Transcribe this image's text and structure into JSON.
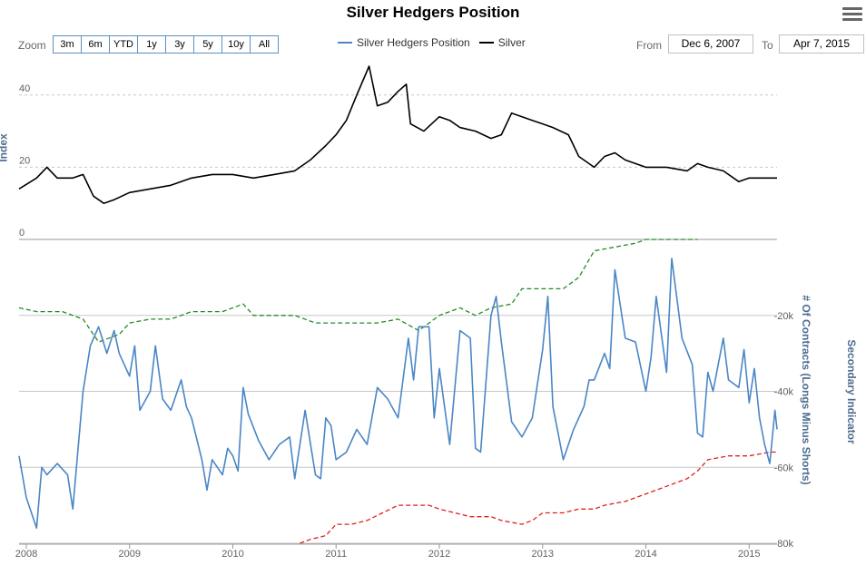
{
  "title": "Silver Hedgers Position",
  "menu_icon": "hamburger-menu-icon",
  "toolbar": {
    "zoom_label": "Zoom",
    "zoom_buttons": [
      "3m",
      "6m",
      "YTD",
      "1y",
      "3y",
      "5y",
      "10y",
      "All"
    ],
    "from_label": "From",
    "from_value": "Dec 6, 2007",
    "to_label": "To",
    "to_value": "Apr 7, 2015"
  },
  "chart_data": {
    "type": "line",
    "title": "Silver Hedgers Position",
    "x_range": [
      2007.93,
      2015.27
    ],
    "x_ticks": [
      "2008",
      "2009",
      "2010",
      "2011",
      "2012",
      "2013",
      "2014",
      "2015"
    ],
    "legend": [
      "Silver Hedgers Position",
      "Silver"
    ],
    "legend_placement": "top-center",
    "grid": true,
    "top_panel": {
      "ylabel": "Index",
      "ylim": [
        0,
        50
      ],
      "y_ticks": [
        "0",
        "20",
        "40"
      ],
      "series": [
        {
          "name": "Silver",
          "color": "#000000",
          "x": [
            2007.93,
            2008.1,
            2008.2,
            2008.3,
            2008.45,
            2008.55,
            2008.65,
            2008.75,
            2008.85,
            2009.0,
            2009.2,
            2009.4,
            2009.6,
            2009.8,
            2010.0,
            2010.2,
            2010.4,
            2010.6,
            2010.75,
            2010.9,
            2011.0,
            2011.1,
            2011.2,
            2011.32,
            2011.4,
            2011.5,
            2011.6,
            2011.68,
            2011.72,
            2011.85,
            2012.0,
            2012.1,
            2012.2,
            2012.35,
            2012.5,
            2012.6,
            2012.7,
            2012.8,
            2012.9,
            2013.0,
            2013.1,
            2013.25,
            2013.35,
            2013.5,
            2013.6,
            2013.7,
            2013.8,
            2013.9,
            2014.0,
            2014.2,
            2014.4,
            2014.5,
            2014.6,
            2014.75,
            2014.9,
            2015.0,
            2015.1,
            2015.2,
            2015.27
          ],
          "values": [
            14,
            17,
            20,
            17,
            17,
            18,
            12,
            10,
            11,
            13,
            14,
            15,
            17,
            18,
            18,
            17,
            18,
            19,
            22,
            26,
            29,
            33,
            40,
            48,
            37,
            38,
            41,
            43,
            32,
            30,
            34,
            33,
            31,
            30,
            28,
            29,
            35,
            34,
            33,
            32,
            31,
            29,
            23,
            20,
            23,
            24,
            22,
            21,
            20,
            20,
            19,
            21,
            20,
            19,
            16,
            17,
            17,
            17,
            17
          ]
        }
      ]
    },
    "bottom_panel": {
      "ylabel": "# Of Contracts (Longs Minus Shorts)",
      "secondary_ylabel": "Secondary Indicator",
      "ylim": [
        -80000,
        0
      ],
      "y_ticks": [
        "-20k",
        "-40k",
        "-60k",
        "-80k"
      ],
      "series": [
        {
          "name": "Silver Hedgers Position",
          "color": "#4a86c5",
          "x": [
            2007.93,
            2008.0,
            2008.1,
            2008.15,
            2008.2,
            2008.3,
            2008.4,
            2008.45,
            2008.55,
            2008.62,
            2008.7,
            2008.78,
            2008.85,
            2008.9,
            2009.0,
            2009.05,
            2009.1,
            2009.2,
            2009.25,
            2009.32,
            2009.4,
            2009.5,
            2009.55,
            2009.6,
            2009.7,
            2009.75,
            2009.8,
            2009.9,
            2009.95,
            2010.0,
            2010.05,
            2010.1,
            2010.15,
            2010.25,
            2010.35,
            2010.45,
            2010.55,
            2010.6,
            2010.7,
            2010.8,
            2010.85,
            2010.9,
            2010.95,
            2011.0,
            2011.1,
            2011.2,
            2011.3,
            2011.4,
            2011.5,
            2011.6,
            2011.7,
            2011.75,
            2011.8,
            2011.9,
            2011.95,
            2012.0,
            2012.1,
            2012.2,
            2012.3,
            2012.35,
            2012.4,
            2012.5,
            2012.55,
            2012.6,
            2012.7,
            2012.8,
            2012.9,
            2013.0,
            2013.05,
            2013.1,
            2013.2,
            2013.3,
            2013.4,
            2013.45,
            2013.5,
            2013.6,
            2013.65,
            2013.7,
            2013.8,
            2013.9,
            2014.0,
            2014.05,
            2014.1,
            2014.2,
            2014.25,
            2014.35,
            2014.45,
            2014.5,
            2014.55,
            2014.6,
            2014.65,
            2014.75,
            2014.8,
            2014.9,
            2014.95,
            2015.0,
            2015.05,
            2015.1,
            2015.15,
            2015.2,
            2015.25,
            2015.27
          ],
          "values": [
            -57,
            -68,
            -76,
            -60,
            -62,
            -59,
            -62,
            -71,
            -40,
            -28,
            -23,
            -30,
            -24,
            -30,
            -36,
            -28,
            -45,
            -40,
            -28,
            -42,
            -45,
            -37,
            -44,
            -47,
            -58,
            -66,
            -58,
            -62,
            -55,
            -57,
            -61,
            -39,
            -46,
            -53,
            -58,
            -54,
            -52,
            -63,
            -45,
            -62,
            -63,
            -47,
            -49,
            -58,
            -56,
            -50,
            -54,
            -39,
            -42,
            -47,
            -26,
            -37,
            -23,
            -23,
            -47,
            -34,
            -54,
            -24,
            -26,
            -55,
            -56,
            -20,
            -15,
            -27,
            -48,
            -52,
            -47,
            -29,
            -15,
            -44,
            -58,
            -50,
            -44,
            -37,
            -37,
            -30,
            -34,
            -8,
            -26,
            -27,
            -40,
            -31,
            -15,
            -35,
            -5,
            -26,
            -33,
            -51,
            -52,
            -35,
            -40,
            -26,
            -37,
            -39,
            -29,
            -43,
            -34,
            -47,
            -54,
            -59,
            -45,
            -50
          ]
        },
        {
          "name": "",
          "color": "#228b22",
          "style": "dashed",
          "x": [
            2007.93,
            2008.1,
            2008.35,
            2008.55,
            2008.7,
            2008.9,
            2009.0,
            2009.2,
            2009.4,
            2009.6,
            2009.9,
            2010.1,
            2010.2,
            2010.4,
            2010.6,
            2010.8,
            2011.0,
            2011.2,
            2011.4,
            2011.6,
            2011.8,
            2012.0,
            2012.2,
            2012.35,
            2012.5,
            2012.7,
            2012.8,
            2013.0,
            2013.2,
            2013.35,
            2013.5,
            2013.7,
            2013.9,
            2014.0,
            2014.2,
            2014.4,
            2014.5
          ],
          "values": [
            -18,
            -19,
            -19,
            -21,
            -27,
            -25,
            -22,
            -21,
            -21,
            -19,
            -19,
            -17,
            -20,
            -20,
            -20,
            -22,
            -22,
            -22,
            -22,
            -21,
            -24,
            -20,
            -18,
            -20,
            -18,
            -17,
            -13,
            -13,
            -13,
            -10,
            -3,
            -2,
            -1,
            0,
            0,
            0,
            0
          ]
        },
        {
          "name": "",
          "color": "#e0201a",
          "style": "dashed",
          "x": [
            2010.65,
            2010.75,
            2010.9,
            2011.0,
            2011.15,
            2011.3,
            2011.45,
            2011.6,
            2011.75,
            2011.9,
            2012.0,
            2012.15,
            2012.3,
            2012.5,
            2012.6,
            2012.8,
            2012.9,
            2013.0,
            2013.2,
            2013.35,
            2013.5,
            2013.6,
            2013.8,
            2014.0,
            2014.1,
            2014.2,
            2014.4,
            2014.5,
            2014.6,
            2014.8,
            2015.0,
            2015.2,
            2015.27
          ],
          "values": [
            -80,
            -79,
            -78,
            -75,
            -75,
            -74,
            -72,
            -70,
            -70,
            -70,
            -71,
            -72,
            -73,
            -73,
            -74,
            -75,
            -74,
            -72,
            -72,
            -71,
            -71,
            -70,
            -69,
            -67,
            -66,
            -65,
            -63,
            -61,
            -58,
            -57,
            -57,
            -56,
            -56
          ]
        }
      ]
    }
  }
}
